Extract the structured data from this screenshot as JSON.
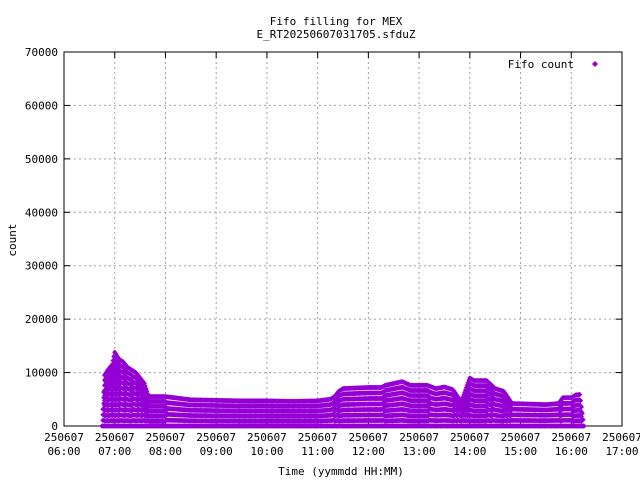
{
  "chart_data": {
    "type": "scatter",
    "title": "Fifo filling for MEX",
    "subtitle": "E_RT20250607031705.sfduZ",
    "xlabel": "Time (yymmdd HH:MM)",
    "ylabel": "count",
    "xlim": [
      "250607 06:00",
      "250607 17:00"
    ],
    "ylim": [
      0,
      70000
    ],
    "grid": true,
    "legend_position": "top-right",
    "x_ticks": [
      {
        "date": "250607",
        "time": "06:00"
      },
      {
        "date": "250607",
        "time": "07:00"
      },
      {
        "date": "250607",
        "time": "08:00"
      },
      {
        "date": "250607",
        "time": "09:00"
      },
      {
        "date": "250607",
        "time": "10:00"
      },
      {
        "date": "250607",
        "time": "11:00"
      },
      {
        "date": "250607",
        "time": "12:00"
      },
      {
        "date": "250607",
        "time": "13:00"
      },
      {
        "date": "250607",
        "time": "14:00"
      },
      {
        "date": "250607",
        "time": "15:00"
      },
      {
        "date": "250607",
        "time": "16:00"
      },
      {
        "date": "250607",
        "time": "17:00"
      }
    ],
    "y_ticks": [
      "0",
      "10000",
      "20000",
      "30000",
      "40000",
      "50000",
      "60000",
      "70000"
    ],
    "series": [
      {
        "name": "Fifo count",
        "color": "#9400d3",
        "marker": "diamond",
        "envelope": [
          [
            "06:45",
            0
          ],
          [
            "06:48",
            9500
          ],
          [
            "06:52",
            10500
          ],
          [
            "06:57",
            11500
          ],
          [
            "07:00",
            13800
          ],
          [
            "07:05",
            12500
          ],
          [
            "07:10",
            12000
          ],
          [
            "07:15",
            11000
          ],
          [
            "07:20",
            10500
          ],
          [
            "07:25",
            10000
          ],
          [
            "07:30",
            9000
          ],
          [
            "07:35",
            8000
          ],
          [
            "07:40",
            5500
          ],
          [
            "08:00",
            5500
          ],
          [
            "08:15",
            5200
          ],
          [
            "08:30",
            4900
          ],
          [
            "09:00",
            4800
          ],
          [
            "09:30",
            4700
          ],
          [
            "10:00",
            4700
          ],
          [
            "10:30",
            4600
          ],
          [
            "11:00",
            4700
          ],
          [
            "11:15",
            5000
          ],
          [
            "11:20",
            5500
          ],
          [
            "11:25",
            6500
          ],
          [
            "11:30",
            7000
          ],
          [
            "12:00",
            7200
          ],
          [
            "12:15",
            7200
          ],
          [
            "12:20",
            7600
          ],
          [
            "12:40",
            8300
          ],
          [
            "12:50",
            7600
          ],
          [
            "13:10",
            7600
          ],
          [
            "13:20",
            7000
          ],
          [
            "13:30",
            7300
          ],
          [
            "13:40",
            6800
          ],
          [
            "13:50",
            4500
          ],
          [
            "14:00",
            9000
          ],
          [
            "14:05",
            8500
          ],
          [
            "14:20",
            8500
          ],
          [
            "14:30",
            7000
          ],
          [
            "14:40",
            6500
          ],
          [
            "14:50",
            4200
          ],
          [
            "15:30",
            4000
          ],
          [
            "15:45",
            4200
          ],
          [
            "15:50",
            5300
          ],
          [
            "16:00",
            5300
          ],
          [
            "16:05",
            5800
          ],
          [
            "16:10",
            5900
          ],
          [
            "16:15",
            0
          ]
        ]
      }
    ]
  }
}
